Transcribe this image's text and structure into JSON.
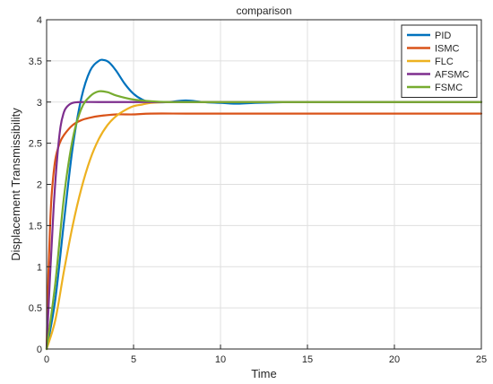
{
  "chart_data": {
    "type": "line",
    "title": "comparison",
    "xlabel": "Time",
    "ylabel": "Displacement Transmissibility",
    "xlim": [
      0,
      25
    ],
    "ylim": [
      0,
      4
    ],
    "xticks": [
      0,
      5,
      10,
      15,
      20,
      25
    ],
    "yticks": [
      0,
      0.5,
      1,
      1.5,
      2,
      2.5,
      3,
      3.5,
      4
    ],
    "xtick_labels": [
      "0",
      "5",
      "10",
      "15",
      "20",
      "25"
    ],
    "ytick_labels": [
      "0",
      "0.5",
      "1",
      "1.5",
      "2",
      "2.5",
      "3",
      "3.5",
      "4"
    ],
    "grid": true,
    "legend_position": "top-right",
    "series": [
      {
        "name": "PID",
        "color": "#0072BD",
        "x": [
          0,
          0.5,
          1,
          1.5,
          2,
          2.5,
          3,
          3.3,
          3.6,
          4,
          4.5,
          5,
          5.5,
          6,
          7,
          8,
          9,
          10,
          11,
          12,
          14,
          16,
          20,
          25
        ],
        "y": [
          0,
          0.6,
          1.55,
          2.45,
          3.05,
          3.38,
          3.5,
          3.51,
          3.48,
          3.38,
          3.22,
          3.1,
          3.03,
          3.0,
          3.0,
          3.02,
          3.0,
          2.99,
          2.98,
          2.99,
          3.0,
          3.0,
          3.0,
          3.0
        ]
      },
      {
        "name": "ISMC",
        "color": "#D95319",
        "x": [
          0,
          0.1,
          0.2,
          0.3,
          0.5,
          0.75,
          1,
          1.5,
          2,
          2.5,
          3,
          4,
          5,
          6,
          8,
          10,
          15,
          20,
          25
        ],
        "y": [
          0,
          0.9,
          1.5,
          1.9,
          2.3,
          2.5,
          2.6,
          2.72,
          2.78,
          2.81,
          2.83,
          2.85,
          2.85,
          2.86,
          2.86,
          2.86,
          2.86,
          2.86,
          2.86
        ]
      },
      {
        "name": "FLC",
        "color": "#EDB120",
        "x": [
          0,
          0.5,
          1,
          1.5,
          2,
          2.5,
          3,
          3.5,
          4,
          4.5,
          5,
          5.5,
          6,
          7,
          8,
          10,
          15,
          20,
          25
        ],
        "y": [
          0,
          0.35,
          0.95,
          1.5,
          1.95,
          2.3,
          2.55,
          2.72,
          2.83,
          2.9,
          2.95,
          2.97,
          2.99,
          3.0,
          3.0,
          3.0,
          3.0,
          3.0,
          3.0
        ]
      },
      {
        "name": "AFSMC",
        "color": "#7E2F8E",
        "x": [
          0,
          0.2,
          0.4,
          0.6,
          0.8,
          1,
          1.2,
          1.5,
          2,
          3,
          5,
          10,
          15,
          20,
          25
        ],
        "y": [
          0,
          0.9,
          1.7,
          2.3,
          2.7,
          2.88,
          2.95,
          2.99,
          3.0,
          3.0,
          3.0,
          3.0,
          3.0,
          3.0,
          3.0
        ]
      },
      {
        "name": "FSMC",
        "color": "#77AC30",
        "x": [
          0,
          0.5,
          1,
          1.5,
          2,
          2.5,
          3,
          3.5,
          4,
          5,
          6,
          7,
          8,
          10,
          15,
          20,
          25
        ],
        "y": [
          0,
          0.8,
          1.85,
          2.55,
          2.92,
          3.07,
          3.13,
          3.12,
          3.08,
          3.03,
          3.01,
          3.0,
          3.0,
          3.0,
          3.0,
          3.0,
          3.0
        ]
      }
    ]
  }
}
